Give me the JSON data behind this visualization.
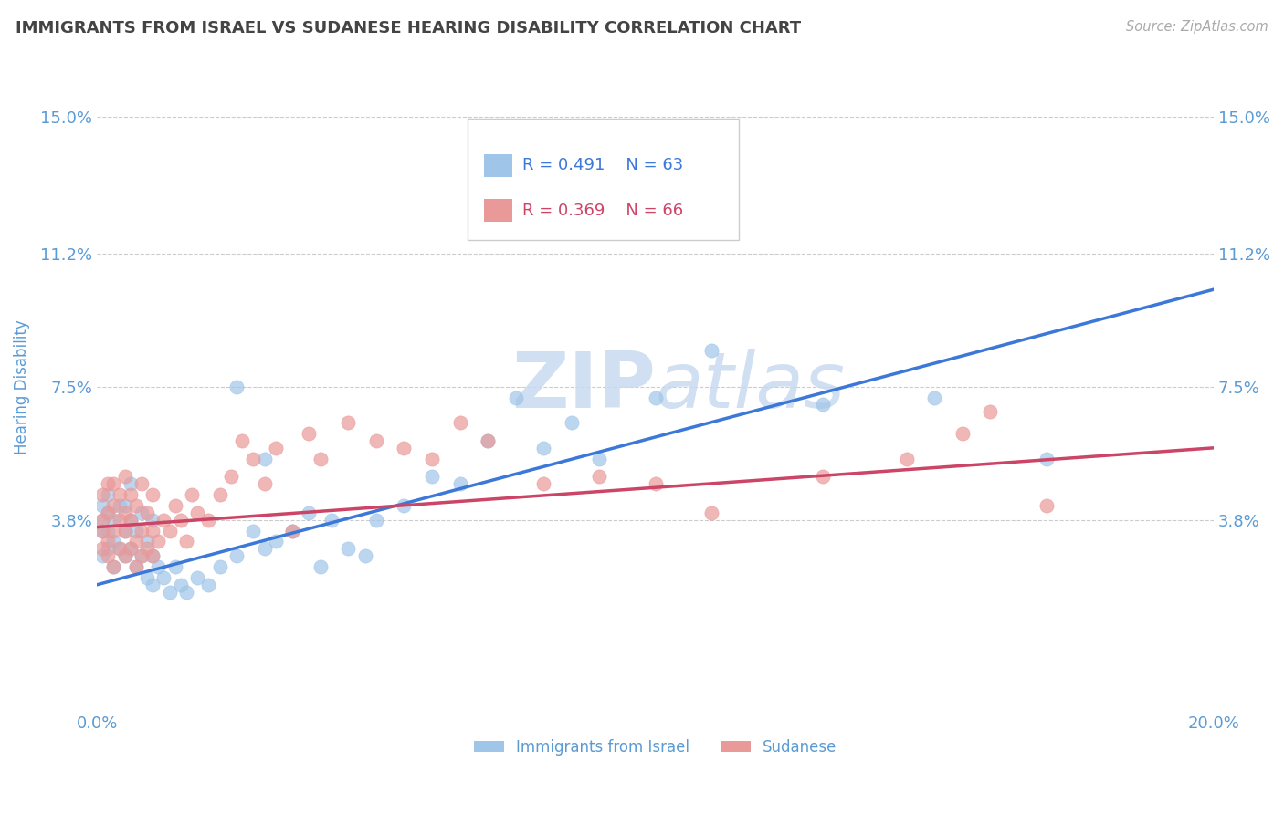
{
  "title": "IMMIGRANTS FROM ISRAEL VS SUDANESE HEARING DISABILITY CORRELATION CHART",
  "source": "Source: ZipAtlas.com",
  "ylabel": "Hearing Disability",
  "legend_labels": [
    "Immigrants from Israel",
    "Sudanese"
  ],
  "israel_r": "R = 0.491",
  "israel_n": "N = 63",
  "sudanese_r": "R = 0.369",
  "sudanese_n": "N = 66",
  "xlim": [
    0.0,
    0.2
  ],
  "ylim": [
    -0.015,
    0.165
  ],
  "yticks": [
    0.038,
    0.075,
    0.112,
    0.15
  ],
  "ytick_labels": [
    "3.8%",
    "7.5%",
    "11.2%",
    "15.0%"
  ],
  "xticks": [
    0.0,
    0.05,
    0.1,
    0.15,
    0.2
  ],
  "xtick_labels": [
    "0.0%",
    "",
    "",
    "",
    "20.0%"
  ],
  "israel_color": "#9fc5e8",
  "israel_line_color": "#3c78d8",
  "sudanese_color": "#ea9999",
  "sudanese_line_color": "#cc4466",
  "watermark_color": "#c8daf0",
  "background_color": "#ffffff",
  "grid_color": "#cccccc",
  "title_color": "#444444",
  "tick_color": "#5b9bd5",
  "israel_scatter_x": [
    0.001,
    0.001,
    0.001,
    0.001,
    0.002,
    0.002,
    0.002,
    0.002,
    0.003,
    0.003,
    0.003,
    0.004,
    0.004,
    0.005,
    0.005,
    0.005,
    0.006,
    0.006,
    0.006,
    0.007,
    0.007,
    0.008,
    0.008,
    0.009,
    0.009,
    0.01,
    0.01,
    0.01,
    0.011,
    0.012,
    0.013,
    0.014,
    0.015,
    0.016,
    0.018,
    0.02,
    0.022,
    0.025,
    0.025,
    0.028,
    0.03,
    0.03,
    0.032,
    0.035,
    0.038,
    0.04,
    0.042,
    0.045,
    0.048,
    0.05,
    0.055,
    0.06,
    0.065,
    0.07,
    0.075,
    0.08,
    0.085,
    0.09,
    0.1,
    0.11,
    0.13,
    0.15,
    0.17
  ],
  "israel_scatter_y": [
    0.028,
    0.035,
    0.038,
    0.042,
    0.03,
    0.035,
    0.04,
    0.045,
    0.025,
    0.032,
    0.038,
    0.03,
    0.042,
    0.028,
    0.035,
    0.042,
    0.03,
    0.038,
    0.048,
    0.025,
    0.035,
    0.028,
    0.04,
    0.022,
    0.032,
    0.02,
    0.028,
    0.038,
    0.025,
    0.022,
    0.018,
    0.025,
    0.02,
    0.018,
    0.022,
    0.02,
    0.025,
    0.028,
    0.075,
    0.035,
    0.03,
    0.055,
    0.032,
    0.035,
    0.04,
    0.025,
    0.038,
    0.03,
    0.028,
    0.038,
    0.042,
    0.05,
    0.048,
    0.06,
    0.072,
    0.058,
    0.065,
    0.055,
    0.072,
    0.085,
    0.07,
    0.072,
    0.055
  ],
  "sudanese_scatter_x": [
    0.001,
    0.001,
    0.001,
    0.001,
    0.002,
    0.002,
    0.002,
    0.002,
    0.003,
    0.003,
    0.003,
    0.003,
    0.004,
    0.004,
    0.004,
    0.005,
    0.005,
    0.005,
    0.005,
    0.006,
    0.006,
    0.006,
    0.007,
    0.007,
    0.007,
    0.008,
    0.008,
    0.008,
    0.009,
    0.009,
    0.01,
    0.01,
    0.01,
    0.011,
    0.012,
    0.013,
    0.014,
    0.015,
    0.016,
    0.017,
    0.018,
    0.02,
    0.022,
    0.024,
    0.026,
    0.028,
    0.03,
    0.032,
    0.035,
    0.038,
    0.04,
    0.045,
    0.05,
    0.055,
    0.06,
    0.065,
    0.07,
    0.08,
    0.09,
    0.1,
    0.11,
    0.13,
    0.145,
    0.155,
    0.16,
    0.17
  ],
  "sudanese_scatter_y": [
    0.03,
    0.035,
    0.038,
    0.045,
    0.028,
    0.032,
    0.04,
    0.048,
    0.025,
    0.035,
    0.042,
    0.048,
    0.03,
    0.038,
    0.045,
    0.028,
    0.035,
    0.04,
    0.05,
    0.03,
    0.038,
    0.045,
    0.025,
    0.032,
    0.042,
    0.028,
    0.035,
    0.048,
    0.03,
    0.04,
    0.028,
    0.035,
    0.045,
    0.032,
    0.038,
    0.035,
    0.042,
    0.038,
    0.032,
    0.045,
    0.04,
    0.038,
    0.045,
    0.05,
    0.06,
    0.055,
    0.048,
    0.058,
    0.035,
    0.062,
    0.055,
    0.065,
    0.06,
    0.058,
    0.055,
    0.065,
    0.06,
    0.048,
    0.05,
    0.048,
    0.04,
    0.05,
    0.055,
    0.062,
    0.068,
    0.042
  ],
  "israel_line_x0": 0.0,
  "israel_line_y0": 0.02,
  "israel_line_x1": 0.2,
  "israel_line_y1": 0.102,
  "sudanese_line_x0": 0.0,
  "sudanese_line_y0": 0.036,
  "sudanese_line_x1": 0.2,
  "sudanese_line_y1": 0.058
}
